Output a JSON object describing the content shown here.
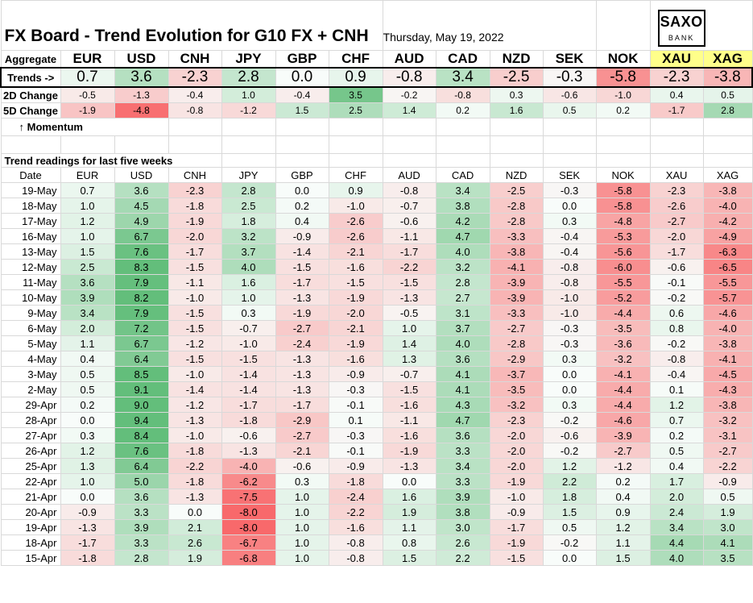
{
  "title": "FX Board - Trend Evolution for G10 FX + CNH",
  "date": "Thursday, May 19, 2022",
  "logo": {
    "line1": "SAXO",
    "line2": "BANK"
  },
  "aggregate_label": "Aggregate",
  "trends_label": "Trends ->",
  "change2d_label": "2D Change",
  "change5d_label": "5D Change",
  "momentum_label": "↑ Momentum",
  "section_label": "Trend readings for last five weeks",
  "date_header": "Date",
  "currencies": [
    "EUR",
    "USD",
    "CNH",
    "JPY",
    "GBP",
    "CHF",
    "AUD",
    "CAD",
    "NZD",
    "SEK",
    "NOK",
    "XAU",
    "XAG"
  ],
  "trends": [
    "0.7",
    "3.6",
    "-2.3",
    "2.8",
    "0.0",
    "0.9",
    "-0.8",
    "3.4",
    "-2.5",
    "-0.3",
    "-5.8",
    "-2.3",
    "-3.8"
  ],
  "change2d": [
    "-0.5",
    "-1.3",
    "-0.4",
    "1.0",
    "-0.4",
    "3.5",
    "-0.2",
    "-0.8",
    "0.3",
    "-0.6",
    "-1.0",
    "0.4",
    "0.5"
  ],
  "change5d": [
    "-1.9",
    "-4.8",
    "-0.8",
    "-1.2",
    "1.5",
    "2.5",
    "1.4",
    "0.2",
    "1.6",
    "0.5",
    "0.2",
    "-1.7",
    "2.8"
  ],
  "rows": [
    {
      "date": "19-May",
      "values": [
        "0.7",
        "3.6",
        "-2.3",
        "2.8",
        "0.0",
        "0.9",
        "-0.8",
        "3.4",
        "-2.5",
        "-0.3",
        "-5.8",
        "-2.3",
        "-3.8"
      ]
    },
    {
      "date": "18-May",
      "values": [
        "1.0",
        "4.5",
        "-1.8",
        "2.5",
        "0.2",
        "-1.0",
        "-0.7",
        "3.8",
        "-2.8",
        "0.0",
        "-5.8",
        "-2.6",
        "-4.0"
      ]
    },
    {
      "date": "17-May",
      "values": [
        "1.2",
        "4.9",
        "-1.9",
        "1.8",
        "0.4",
        "-2.6",
        "-0.6",
        "4.2",
        "-2.8",
        "0.3",
        "-4.8",
        "-2.7",
        "-4.2"
      ]
    },
    {
      "date": "16-May",
      "values": [
        "1.0",
        "6.7",
        "-2.0",
        "3.2",
        "-0.9",
        "-2.6",
        "-1.1",
        "4.7",
        "-3.3",
        "-0.4",
        "-5.3",
        "-2.0",
        "-4.9"
      ]
    },
    {
      "date": "13-May",
      "values": [
        "1.5",
        "7.6",
        "-1.7",
        "3.7",
        "-1.4",
        "-2.1",
        "-1.7",
        "4.0",
        "-3.8",
        "-0.4",
        "-5.6",
        "-1.7",
        "-6.3"
      ]
    },
    {
      "date": "12-May",
      "values": [
        "2.5",
        "8.3",
        "-1.5",
        "4.0",
        "-1.5",
        "-1.6",
        "-2.2",
        "3.2",
        "-4.1",
        "-0.8",
        "-6.0",
        "-0.6",
        "-6.5"
      ]
    },
    {
      "date": "11-May",
      "values": [
        "3.6",
        "7.9",
        "-1.1",
        "1.6",
        "-1.7",
        "-1.5",
        "-1.5",
        "2.8",
        "-3.9",
        "-0.8",
        "-5.5",
        "-0.1",
        "-5.5"
      ]
    },
    {
      "date": "10-May",
      "values": [
        "3.9",
        "8.2",
        "-1.0",
        "1.0",
        "-1.3",
        "-1.9",
        "-1.3",
        "2.7",
        "-3.9",
        "-1.0",
        "-5.2",
        "-0.2",
        "-5.7"
      ]
    },
    {
      "date": "9-May",
      "values": [
        "3.4",
        "7.9",
        "-1.5",
        "0.3",
        "-1.9",
        "-2.0",
        "-0.5",
        "3.1",
        "-3.3",
        "-1.0",
        "-4.4",
        "0.6",
        "-4.6"
      ]
    },
    {
      "date": "6-May",
      "values": [
        "2.0",
        "7.2",
        "-1.5",
        "-0.7",
        "-2.7",
        "-2.1",
        "1.0",
        "3.7",
        "-2.7",
        "-0.3",
        "-3.5",
        "0.8",
        "-4.0"
      ]
    },
    {
      "date": "5-May",
      "values": [
        "1.1",
        "6.7",
        "-1.2",
        "-1.0",
        "-2.4",
        "-1.9",
        "1.4",
        "4.0",
        "-2.8",
        "-0.3",
        "-3.6",
        "-0.2",
        "-3.8"
      ]
    },
    {
      "date": "4-May",
      "values": [
        "0.4",
        "6.4",
        "-1.5",
        "-1.5",
        "-1.3",
        "-1.6",
        "1.3",
        "3.6",
        "-2.9",
        "0.3",
        "-3.2",
        "-0.8",
        "-4.1"
      ]
    },
    {
      "date": "3-May",
      "values": [
        "0.5",
        "8.5",
        "-1.0",
        "-1.4",
        "-1.3",
        "-0.9",
        "-0.7",
        "4.1",
        "-3.7",
        "0.0",
        "-4.1",
        "-0.4",
        "-4.5"
      ]
    },
    {
      "date": "2-May",
      "values": [
        "0.5",
        "9.1",
        "-1.4",
        "-1.4",
        "-1.3",
        "-0.3",
        "-1.5",
        "4.1",
        "-3.5",
        "0.0",
        "-4.4",
        "0.1",
        "-4.3"
      ]
    },
    {
      "date": "29-Apr",
      "values": [
        "0.2",
        "9.0",
        "-1.2",
        "-1.7",
        "-1.7",
        "-0.1",
        "-1.6",
        "4.3",
        "-3.2",
        "0.3",
        "-4.4",
        "1.2",
        "-3.8"
      ]
    },
    {
      "date": "28-Apr",
      "values": [
        "0.0",
        "9.4",
        "-1.3",
        "-1.8",
        "-2.9",
        "0.1",
        "-1.1",
        "4.7",
        "-2.3",
        "-0.2",
        "-4.6",
        "0.7",
        "-3.2"
      ]
    },
    {
      "date": "27-Apr",
      "values": [
        "0.3",
        "8.4",
        "-1.0",
        "-0.6",
        "-2.7",
        "-0.3",
        "-1.6",
        "3.6",
        "-2.0",
        "-0.6",
        "-3.9",
        "0.2",
        "-3.1"
      ]
    },
    {
      "date": "26-Apr",
      "values": [
        "1.2",
        "7.6",
        "-1.8",
        "-1.3",
        "-2.1",
        "-0.1",
        "-1.9",
        "3.3",
        "-2.0",
        "-0.2",
        "-2.7",
        "0.5",
        "-2.7"
      ]
    },
    {
      "date": "25-Apr",
      "values": [
        "1.3",
        "6.4",
        "-2.2",
        "-4.0",
        "-0.6",
        "-0.9",
        "-1.3",
        "3.4",
        "-2.0",
        "1.2",
        "-1.2",
        "0.4",
        "-2.2"
      ]
    },
    {
      "date": "22-Apr",
      "values": [
        "1.0",
        "5.0",
        "-1.8",
        "-6.2",
        "0.3",
        "-1.8",
        "0.0",
        "3.3",
        "-1.9",
        "2.2",
        "0.2",
        "1.7",
        "-0.9"
      ]
    },
    {
      "date": "21-Apr",
      "values": [
        "0.0",
        "3.6",
        "-1.3",
        "-7.5",
        "1.0",
        "-2.4",
        "1.6",
        "3.9",
        "-1.0",
        "1.8",
        "0.4",
        "2.0",
        "0.5"
      ]
    },
    {
      "date": "20-Apr",
      "values": [
        "-0.9",
        "3.3",
        "0.0",
        "-8.0",
        "1.0",
        "-2.2",
        "1.9",
        "3.8",
        "-0.9",
        "1.5",
        "0.9",
        "2.4",
        "1.9"
      ]
    },
    {
      "date": "19-Apr",
      "values": [
        "-1.3",
        "3.9",
        "2.1",
        "-8.0",
        "1.0",
        "-1.6",
        "1.1",
        "3.0",
        "-1.7",
        "0.5",
        "1.2",
        "3.4",
        "3.0"
      ]
    },
    {
      "date": "18-Apr",
      "values": [
        "-1.7",
        "3.3",
        "2.6",
        "-6.7",
        "1.0",
        "-0.8",
        "0.8",
        "2.6",
        "-1.9",
        "-0.2",
        "1.1",
        "4.4",
        "4.1"
      ]
    },
    {
      "date": "15-Apr",
      "values": [
        "-1.8",
        "2.8",
        "1.9",
        "-6.8",
        "1.0",
        "-0.8",
        "1.5",
        "2.2",
        "-1.5",
        "0.0",
        "1.5",
        "4.0",
        "3.5"
      ]
    }
  ]
}
